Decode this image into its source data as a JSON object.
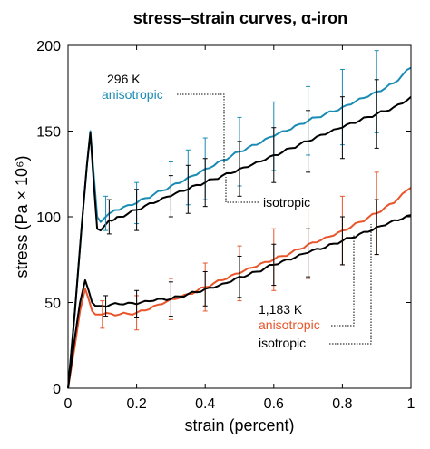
{
  "chart_data": {
    "type": "line",
    "title": "stress–strain curves, α-iron",
    "xlabel": "strain (percent)",
    "ylabel": "stress (Pa × 10⁶)",
    "xlim": [
      0,
      1
    ],
    "ylim": [
      0,
      200
    ],
    "x_ticks": [
      "0",
      "0.2",
      "0.4",
      "0.6",
      "0.8",
      "1"
    ],
    "y_ticks": [
      "0",
      "50",
      "100",
      "150",
      "200"
    ],
    "grid": false,
    "colors": {
      "anisotropic_296": "#1a8bb3",
      "isotropic": "#000000",
      "anisotropic_1183": "#e8552b"
    },
    "annotations": {
      "temp_296": "296 K",
      "aniso_296": "anisotropic",
      "iso_296": "isotropic",
      "temp_1183": "1,183 K",
      "aniso_1183": "anisotropic",
      "iso_1183": "isotropic"
    },
    "series": [
      {
        "key": "aniso_296",
        "color": "#1a8bb3",
        "x": [
          0,
          0.02,
          0.04,
          0.055,
          0.065,
          0.075,
          0.085,
          0.095,
          0.12,
          0.15,
          0.2,
          0.25,
          0.3,
          0.35,
          0.4,
          0.45,
          0.5,
          0.55,
          0.6,
          0.65,
          0.7,
          0.75,
          0.8,
          0.85,
          0.9,
          0.95,
          1.0
        ],
        "y": [
          0,
          45,
          95,
          130,
          150,
          125,
          100,
          97,
          102,
          104,
          108,
          113,
          118,
          123,
          128,
          133,
          138,
          142,
          147,
          151,
          156,
          160,
          164,
          169,
          173,
          178,
          187
        ]
      },
      {
        "key": "iso_296",
        "color": "#000000",
        "x": [
          0,
          0.02,
          0.04,
          0.055,
          0.065,
          0.075,
          0.085,
          0.095,
          0.12,
          0.15,
          0.2,
          0.25,
          0.3,
          0.35,
          0.4,
          0.45,
          0.5,
          0.55,
          0.6,
          0.65,
          0.7,
          0.75,
          0.8,
          0.85,
          0.9,
          0.95,
          1.0
        ],
        "y": [
          0,
          45,
          95,
          130,
          149,
          120,
          93,
          92,
          98,
          100,
          104,
          108,
          112,
          116,
          120,
          124,
          128,
          132,
          136,
          140,
          144,
          148,
          152,
          156,
          160,
          164,
          170
        ]
      },
      {
        "key": "aniso_1183",
        "color": "#e8552b",
        "x": [
          0,
          0.02,
          0.035,
          0.05,
          0.06,
          0.07,
          0.08,
          0.1,
          0.15,
          0.2,
          0.25,
          0.3,
          0.35,
          0.4,
          0.45,
          0.5,
          0.55,
          0.6,
          0.65,
          0.7,
          0.75,
          0.8,
          0.85,
          0.9,
          0.95,
          1.0
        ],
        "y": [
          0,
          25,
          45,
          58,
          52,
          45,
          43,
          43,
          43,
          44,
          48,
          52,
          55,
          59,
          63,
          67,
          71,
          75,
          79,
          84,
          88,
          92,
          97,
          102,
          108,
          117
        ]
      },
      {
        "key": "iso_1183",
        "color": "#000000",
        "x": [
          0,
          0.02,
          0.035,
          0.05,
          0.06,
          0.07,
          0.08,
          0.1,
          0.15,
          0.2,
          0.25,
          0.3,
          0.35,
          0.4,
          0.45,
          0.5,
          0.55,
          0.6,
          0.65,
          0.7,
          0.75,
          0.8,
          0.85,
          0.9,
          0.95,
          1.0
        ],
        "y": [
          0,
          30,
          50,
          63,
          57,
          50,
          48,
          48,
          49,
          49,
          51,
          52,
          55,
          58,
          61,
          65,
          68,
          72,
          75,
          79,
          82,
          86,
          90,
          94,
          98,
          101
        ]
      }
    ],
    "error_bars": [
      {
        "key": "aniso_296",
        "color": "#1a8bb3",
        "x": [
          0.11,
          0.2,
          0.3,
          0.35,
          0.4,
          0.5,
          0.6,
          0.7,
          0.8,
          0.9
        ],
        "y": [
          102,
          108,
          118,
          123,
          128,
          138,
          147,
          156,
          164,
          173
        ],
        "err": [
          10,
          12,
          14,
          16,
          18,
          20,
          20,
          20,
          22,
          24
        ]
      },
      {
        "key": "iso_296",
        "color": "#000000",
        "x": [
          0.12,
          0.2,
          0.3,
          0.35,
          0.4,
          0.5,
          0.6,
          0.7,
          0.8,
          0.9
        ],
        "y": [
          100,
          104,
          112,
          116,
          120,
          128,
          136,
          144,
          152,
          160
        ],
        "err": [
          10,
          12,
          12,
          14,
          14,
          16,
          16,
          18,
          18,
          20
        ]
      },
      {
        "key": "aniso_1183",
        "color": "#e8552b",
        "x": [
          0.1,
          0.2,
          0.3,
          0.4,
          0.5,
          0.6,
          0.7,
          0.8,
          0.9
        ],
        "y": [
          43,
          44,
          52,
          59,
          67,
          75,
          84,
          92,
          102
        ],
        "err": [
          8,
          10,
          12,
          14,
          16,
          18,
          20,
          20,
          24
        ]
      },
      {
        "key": "iso_1183",
        "color": "#000000",
        "x": [
          0.11,
          0.2,
          0.3,
          0.4,
          0.5,
          0.6,
          0.7,
          0.8,
          0.9
        ],
        "y": [
          48,
          49,
          52,
          58,
          65,
          72,
          79,
          86,
          94
        ],
        "err": [
          6,
          8,
          10,
          10,
          12,
          12,
          14,
          14,
          16
        ]
      }
    ]
  }
}
